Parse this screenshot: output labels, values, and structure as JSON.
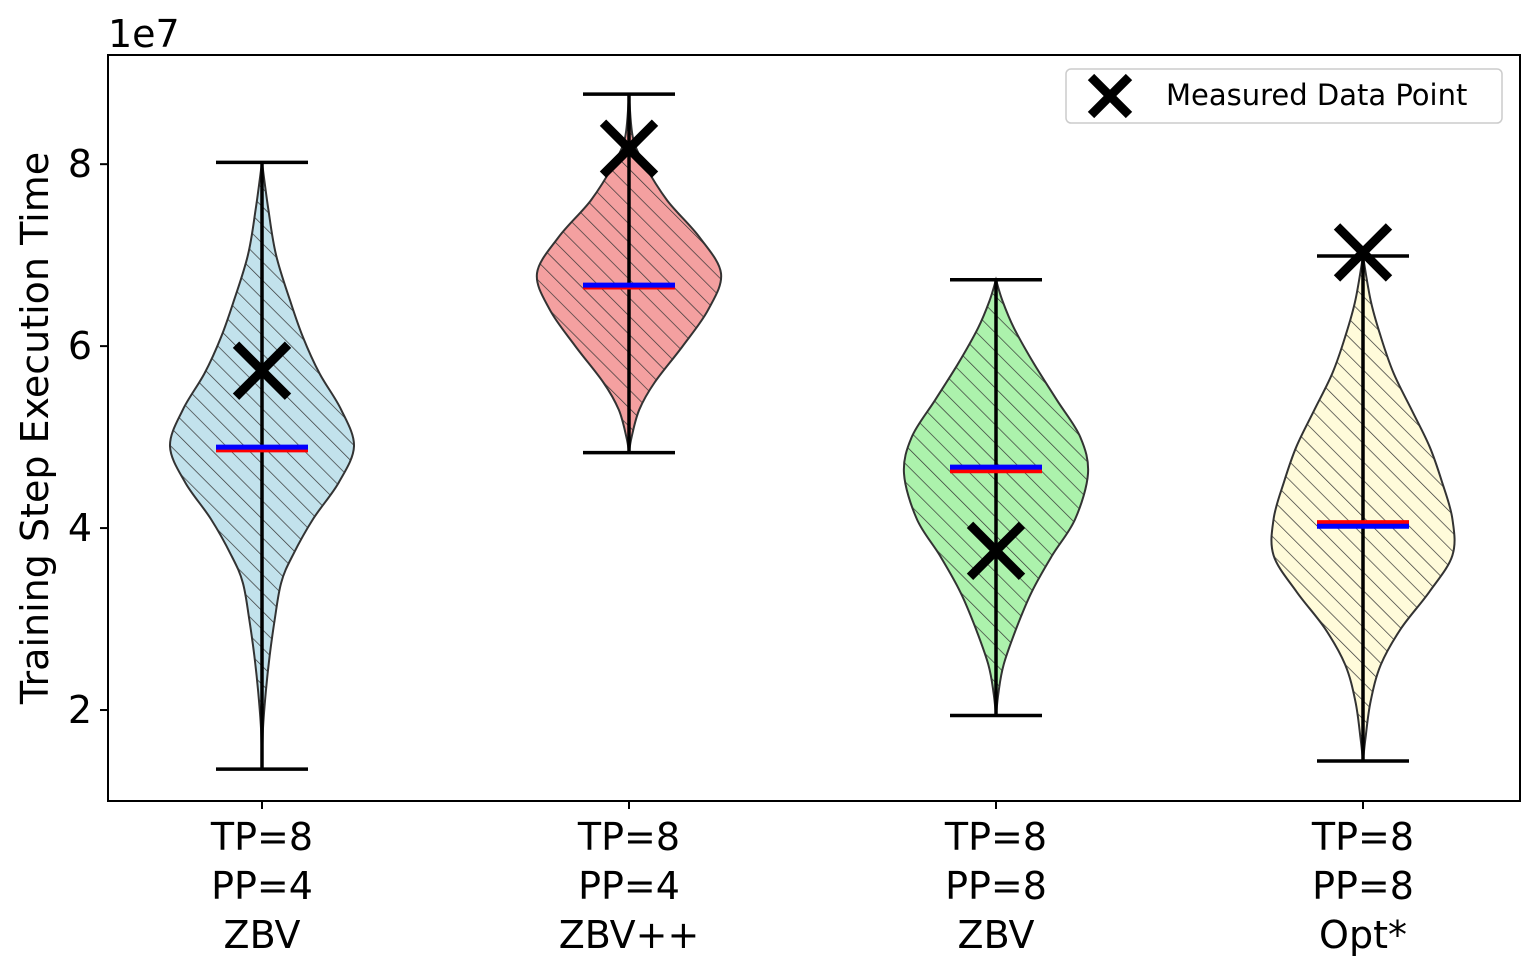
{
  "chart_data": {
    "type": "violin",
    "title": "",
    "xlabel": "",
    "ylabel": "Training Step Execution Time",
    "y_scale_label": "1e7",
    "y_scale": 10000000,
    "ylim": [
      1.0,
      9.2
    ],
    "yticks": [
      2,
      4,
      6,
      8
    ],
    "ytick_labels": [
      "2",
      "4",
      "6",
      "8"
    ],
    "legend": {
      "label": "Measured Data Point",
      "position": "top-right",
      "marker": "x"
    },
    "mean_color": "#ff0000",
    "median_color": "#0000ff",
    "categories": [
      {
        "label_lines": [
          "TP=8",
          "PP=4",
          "ZBV"
        ],
        "fill": "#add8e6",
        "min": 1.35,
        "max": 8.02,
        "mean": 4.86,
        "median": 4.89,
        "measured": 5.73,
        "density": [
          [
            1.35,
            0.0
          ],
          [
            1.8,
            0.008
          ],
          [
            2.2,
            0.03
          ],
          [
            2.6,
            0.06
          ],
          [
            3.0,
            0.1
          ],
          [
            3.4,
            0.15
          ],
          [
            3.7,
            0.24
          ],
          [
            4.1,
            0.4
          ],
          [
            4.5,
            0.6
          ],
          [
            4.9,
            0.72
          ],
          [
            5.3,
            0.62
          ],
          [
            5.7,
            0.45
          ],
          [
            6.1,
            0.32
          ],
          [
            6.5,
            0.22
          ],
          [
            7.0,
            0.11
          ],
          [
            7.5,
            0.05
          ],
          [
            8.02,
            0.0
          ]
        ]
      },
      {
        "label_lines": [
          "TP=8",
          "PP=4",
          "ZBV++"
        ],
        "fill": "#f08080",
        "min": 4.83,
        "max": 8.77,
        "mean": 6.65,
        "median": 6.67,
        "measured": 8.17,
        "density": [
          [
            4.83,
            0.0
          ],
          [
            5.0,
            0.02
          ],
          [
            5.3,
            0.08
          ],
          [
            5.6,
            0.2
          ],
          [
            6.0,
            0.42
          ],
          [
            6.4,
            0.62
          ],
          [
            6.8,
            0.72
          ],
          [
            7.2,
            0.55
          ],
          [
            7.6,
            0.3
          ],
          [
            8.0,
            0.12
          ],
          [
            8.3,
            0.03
          ],
          [
            8.77,
            0.0
          ]
        ]
      },
      {
        "label_lines": [
          "TP=8",
          "PP=8",
          "ZBV"
        ],
        "fill": "#90ee90",
        "min": 1.94,
        "max": 6.73,
        "mean": 4.63,
        "median": 4.67,
        "measured": 3.75,
        "density": [
          [
            1.94,
            0.0
          ],
          [
            2.2,
            0.02
          ],
          [
            2.5,
            0.06
          ],
          [
            2.9,
            0.16
          ],
          [
            3.3,
            0.28
          ],
          [
            3.7,
            0.44
          ],
          [
            4.1,
            0.62
          ],
          [
            4.6,
            0.72
          ],
          [
            5.0,
            0.66
          ],
          [
            5.4,
            0.48
          ],
          [
            5.8,
            0.3
          ],
          [
            6.2,
            0.14
          ],
          [
            6.5,
            0.05
          ],
          [
            6.73,
            0.0
          ]
        ]
      },
      {
        "label_lines": [
          "TP=8",
          "PP=8",
          "Opt*"
        ],
        "fill": "#fffacd",
        "min": 1.44,
        "max": 6.99,
        "mean": 4.06,
        "median": 4.02,
        "measured": 7.03,
        "density": [
          [
            1.44,
            0.0
          ],
          [
            1.7,
            0.02
          ],
          [
            2.1,
            0.06
          ],
          [
            2.5,
            0.14
          ],
          [
            2.9,
            0.3
          ],
          [
            3.3,
            0.52
          ],
          [
            3.7,
            0.7
          ],
          [
            4.1,
            0.7
          ],
          [
            4.5,
            0.62
          ],
          [
            4.9,
            0.52
          ],
          [
            5.3,
            0.38
          ],
          [
            5.7,
            0.24
          ],
          [
            6.1,
            0.14
          ],
          [
            6.5,
            0.06
          ],
          [
            6.99,
            0.0
          ]
        ]
      }
    ]
  }
}
